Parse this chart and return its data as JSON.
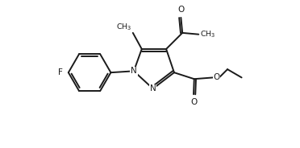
{
  "bg_color": "#ffffff",
  "line_color": "#1a1a1a",
  "line_width": 1.4,
  "figsize": [
    3.72,
    1.84
  ],
  "dpi": 100,
  "xlim": [
    0,
    10
  ],
  "ylim": [
    0,
    5
  ]
}
